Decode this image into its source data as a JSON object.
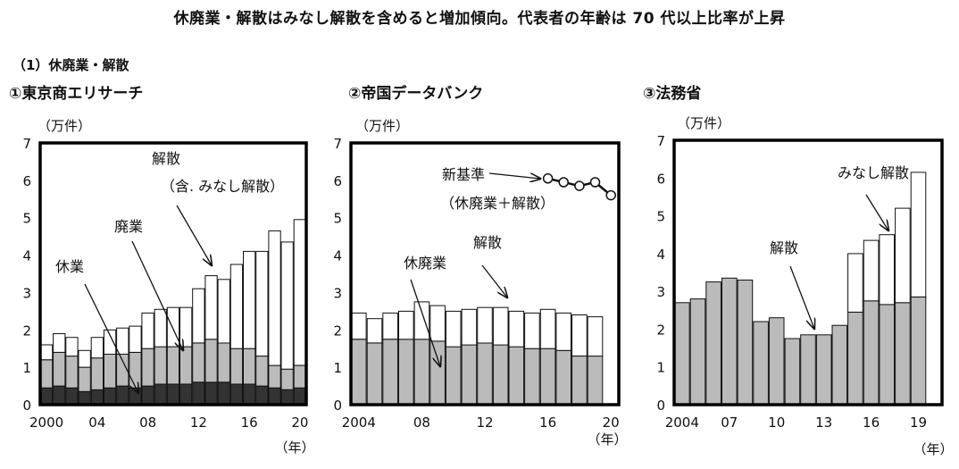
{
  "page_title": "休廃業・解散はみなし解散を含めると増加傾向。代表者の年齢は 70 代以上比率が上昇",
  "section_label": "（1）休廃業・解散",
  "chart_data": [
    {
      "type": "bar",
      "title": "①東京商エリサーチ",
      "unit": "（万件）",
      "year_unit": "（年）",
      "ylim": [
        0,
        7
      ],
      "yticks": [
        "0",
        "1",
        "2",
        "3",
        "4",
        "5",
        "6",
        "7"
      ],
      "x": [
        2000,
        2001,
        2002,
        2003,
        2004,
        2005,
        2006,
        2007,
        2008,
        2009,
        2010,
        2011,
        2012,
        2013,
        2014,
        2015,
        2016,
        2017,
        2018,
        2019,
        2020
      ],
      "xtick_labels": {
        "2000": "2000",
        "2004": "04",
        "2008": "08",
        "2012": "12",
        "2016": "16",
        "2020": "20"
      },
      "series": [
        {
          "name": "休業",
          "color": "#333333",
          "values": [
            0.45,
            0.5,
            0.45,
            0.35,
            0.4,
            0.45,
            0.5,
            0.45,
            0.5,
            0.55,
            0.55,
            0.55,
            0.6,
            0.6,
            0.6,
            0.55,
            0.55,
            0.5,
            0.45,
            0.4,
            0.45
          ]
        },
        {
          "name": "廃業",
          "color": "#bbbbbb",
          "values": [
            0.75,
            0.9,
            0.85,
            0.65,
            0.85,
            0.9,
            0.85,
            0.95,
            1.0,
            1.0,
            1.0,
            1.0,
            1.05,
            1.15,
            1.05,
            0.95,
            0.95,
            0.8,
            0.6,
            0.55,
            0.6
          ]
        },
        {
          "name": "解散（含. みなし解散）",
          "color": "#ffffff",
          "values": [
            0.4,
            0.5,
            0.5,
            0.45,
            0.55,
            0.65,
            0.7,
            0.7,
            0.95,
            1.0,
            1.05,
            1.05,
            1.45,
            1.7,
            1.7,
            2.25,
            2.6,
            2.8,
            3.6,
            3.4,
            3.9
          ]
        }
      ],
      "annotations": [
        {
          "lines": [
            "解散",
            "（含. みなし解散）"
          ]
        },
        {
          "lines": [
            "廃業"
          ]
        },
        {
          "lines": [
            "休業"
          ]
        }
      ]
    },
    {
      "type": "bar",
      "title": "②帝国データバンク",
      "unit": "（万件）",
      "year_unit": "（年）",
      "ylim": [
        0,
        7
      ],
      "yticks": [
        "0",
        "1",
        "2",
        "3",
        "4",
        "5",
        "6",
        "7"
      ],
      "x": [
        2004,
        2005,
        2006,
        2007,
        2008,
        2009,
        2010,
        2011,
        2012,
        2013,
        2014,
        2015,
        2016,
        2017,
        2018,
        2019,
        2020
      ],
      "xtick_labels": {
        "2004": "2004",
        "2008": "08",
        "2012": "12",
        "2016": "16",
        "2020": "20"
      },
      "series": [
        {
          "name": "休廃業",
          "color": "#bbbbbb",
          "values": [
            1.75,
            1.65,
            1.75,
            1.75,
            1.75,
            1.7,
            1.55,
            1.6,
            1.65,
            1.6,
            1.55,
            1.5,
            1.5,
            1.45,
            1.3,
            1.3,
            null
          ]
        },
        {
          "name": "解散",
          "color": "#ffffff",
          "values": [
            0.7,
            0.65,
            0.7,
            0.75,
            1.0,
            0.95,
            0.95,
            0.95,
            0.95,
            1.0,
            0.95,
            0.95,
            1.05,
            1.0,
            1.1,
            1.05,
            null
          ]
        }
      ],
      "line_series": {
        "name": "新基準（休廃業＋解散）",
        "x": [
          2016,
          2017,
          2018,
          2019,
          2020
        ],
        "values": [
          6.05,
          5.95,
          5.85,
          5.95,
          5.6
        ]
      },
      "annotations": [
        {
          "lines": [
            "新基準",
            "（休廃業＋解散）"
          ]
        },
        {
          "lines": [
            "解散"
          ]
        },
        {
          "lines": [
            "休廃業"
          ]
        }
      ]
    },
    {
      "type": "bar",
      "title": "③法務省",
      "unit": "（万件）",
      "year_unit": "（年）",
      "ylim": [
        0,
        7
      ],
      "yticks": [
        "0",
        "1",
        "2",
        "3",
        "4",
        "5",
        "6",
        "7"
      ],
      "x": [
        2004,
        2005,
        2006,
        2007,
        2008,
        2009,
        2010,
        2011,
        2012,
        2013,
        2014,
        2015,
        2016,
        2017,
        2018,
        2019,
        2020
      ],
      "xtick_labels": {
        "2004": "2004",
        "2007": "07",
        "2010": "10",
        "2013": "13",
        "2016": "16",
        "2019": "19"
      },
      "series": [
        {
          "name": "解散",
          "color": "#bbbbbb",
          "values": [
            2.7,
            2.8,
            3.25,
            3.35,
            3.3,
            2.2,
            2.3,
            1.75,
            1.85,
            1.85,
            2.1,
            2.45,
            2.75,
            2.65,
            2.7,
            2.85,
            null
          ]
        },
        {
          "name": "みなし解散",
          "color": "#ffffff",
          "values": [
            0,
            0,
            0,
            0,
            0,
            0,
            0,
            0,
            0,
            0,
            0,
            1.55,
            1.6,
            1.85,
            2.5,
            3.3,
            null
          ]
        }
      ],
      "annotations": [
        {
          "lines": [
            "みなし解散"
          ]
        },
        {
          "lines": [
            "解散"
          ]
        }
      ]
    }
  ]
}
